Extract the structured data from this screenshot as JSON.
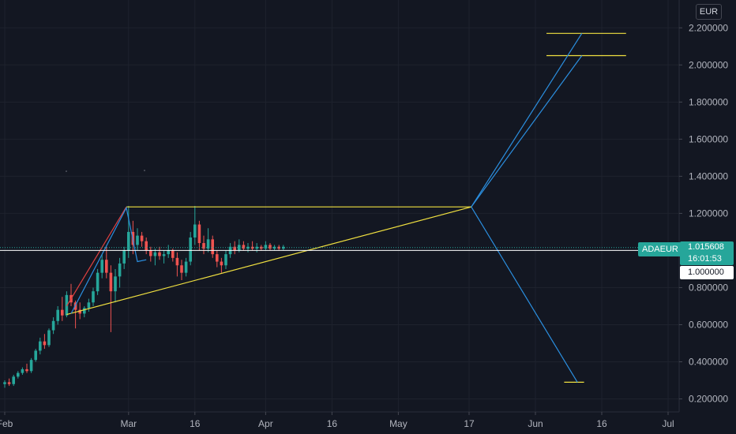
{
  "currency_label": "EUR",
  "symbol_tag": "ADAEUR",
  "last_price": "1.015608",
  "countdown": "16:01:53",
  "level_label": "1.000000",
  "colors": {
    "background": "#131722",
    "up": "#26a69a",
    "down": "#ef5350",
    "yellow": "#f0e040",
    "blue": "#2b8fe0",
    "red": "#e04040"
  },
  "chart_data": {
    "type": "candlestick",
    "symbol": "ADAEUR",
    "currency": "EUR",
    "y_ticks": [
      "2.200000",
      "2.000000",
      "1.800000",
      "1.600000",
      "1.400000",
      "1.200000",
      "0.800000",
      "0.600000",
      "0.400000",
      "0.200000"
    ],
    "y_tick_values": [
      2.2,
      2.0,
      1.8,
      1.6,
      1.4,
      1.2,
      0.8,
      0.6,
      0.4,
      0.2
    ],
    "ylim": [
      0.13,
      2.35
    ],
    "x_ticks": [
      {
        "label": "Feb",
        "day": 0
      },
      {
        "label": "Mar",
        "day": 28
      },
      {
        "label": "16",
        "day": 43
      },
      {
        "label": "Apr",
        "day": 59
      },
      {
        "label": "16",
        "day": 74
      },
      {
        "label": "May",
        "day": 89
      },
      {
        "label": "17",
        "day": 105
      },
      {
        "label": "Jun",
        "day": 120
      },
      {
        "label": "16",
        "day": 135
      },
      {
        "label": "Jul",
        "day": 150
      }
    ],
    "last_price": 1.015608,
    "level": 1.0,
    "candles": [
      [
        0.28,
        0.3,
        0.26,
        0.29
      ],
      [
        0.29,
        0.31,
        0.27,
        0.28
      ],
      [
        0.28,
        0.33,
        0.27,
        0.32
      ],
      [
        0.32,
        0.35,
        0.31,
        0.34
      ],
      [
        0.34,
        0.37,
        0.33,
        0.36
      ],
      [
        0.36,
        0.39,
        0.34,
        0.35
      ],
      [
        0.35,
        0.42,
        0.34,
        0.41
      ],
      [
        0.41,
        0.47,
        0.4,
        0.46
      ],
      [
        0.46,
        0.53,
        0.44,
        0.51
      ],
      [
        0.51,
        0.55,
        0.47,
        0.49
      ],
      [
        0.49,
        0.58,
        0.48,
        0.57
      ],
      [
        0.57,
        0.64,
        0.55,
        0.62
      ],
      [
        0.62,
        0.7,
        0.6,
        0.68
      ],
      [
        0.68,
        0.75,
        0.62,
        0.65
      ],
      [
        0.65,
        0.78,
        0.64,
        0.76
      ],
      [
        0.76,
        0.82,
        0.7,
        0.72
      ],
      [
        0.72,
        0.73,
        0.58,
        0.68
      ],
      [
        0.68,
        0.72,
        0.63,
        0.66
      ],
      [
        0.66,
        0.7,
        0.64,
        0.69
      ],
      [
        0.69,
        0.74,
        0.67,
        0.72
      ],
      [
        0.72,
        0.8,
        0.7,
        0.78
      ],
      [
        0.78,
        0.9,
        0.76,
        0.88
      ],
      [
        0.88,
        0.98,
        0.85,
        0.95
      ],
      [
        0.95,
        1.02,
        0.85,
        0.88
      ],
      [
        0.88,
        0.92,
        0.56,
        0.78
      ],
      [
        0.78,
        0.9,
        0.72,
        0.86
      ],
      [
        0.86,
        0.96,
        0.8,
        0.93
      ],
      [
        0.93,
        1.02,
        0.9,
        1.0
      ],
      [
        1.0,
        1.24,
        0.96,
        1.1
      ],
      [
        1.1,
        1.16,
        0.98,
        1.03
      ],
      [
        1.03,
        1.12,
        1.0,
        1.08
      ],
      [
        1.08,
        1.1,
        1.02,
        1.05
      ],
      [
        1.05,
        1.07,
        0.98,
        1.0
      ],
      [
        1.0,
        1.02,
        0.94,
        0.97
      ],
      [
        0.97,
        1.01,
        0.92,
        0.99
      ],
      [
        0.99,
        1.02,
        0.95,
        0.97
      ],
      [
        0.97,
        1.0,
        0.93,
        0.98
      ],
      [
        0.98,
        1.03,
        0.96,
        1.0
      ],
      [
        1.0,
        1.01,
        0.94,
        0.96
      ],
      [
        0.96,
        0.99,
        0.86,
        0.92
      ],
      [
        0.92,
        0.95,
        0.84,
        0.88
      ],
      [
        0.88,
        0.96,
        0.86,
        0.94
      ],
      [
        0.94,
        1.1,
        0.92,
        1.07
      ],
      [
        1.07,
        1.24,
        1.03,
        1.14
      ],
      [
        1.14,
        1.16,
        1.0,
        1.04
      ],
      [
        1.04,
        1.08,
        0.98,
        1.01
      ],
      [
        1.01,
        1.12,
        0.99,
        1.06
      ],
      [
        1.06,
        1.08,
        0.96,
        0.98
      ],
      [
        0.98,
        1.0,
        0.91,
        0.94
      ],
      [
        0.94,
        0.96,
        0.88,
        0.92
      ],
      [
        0.92,
        1.0,
        0.9,
        0.98
      ],
      [
        0.98,
        1.04,
        0.96,
        1.02
      ],
      [
        1.02,
        1.05,
        0.98,
        1.0
      ],
      [
        1.0,
        1.06,
        0.99,
        1.03
      ],
      [
        1.03,
        1.05,
        1.0,
        1.01
      ],
      [
        1.01,
        1.04,
        0.99,
        1.02
      ],
      [
        1.02,
        1.05,
        1.0,
        1.01
      ],
      [
        1.01,
        1.04,
        0.99,
        1.02
      ],
      [
        1.02,
        1.03,
        1.0,
        1.01
      ],
      [
        1.01,
        1.05,
        1.0,
        1.03
      ],
      [
        1.03,
        1.04,
        1.0,
        1.01
      ],
      [
        1.01,
        1.03,
        1.0,
        1.02
      ],
      [
        1.02,
        1.03,
        1.0,
        1.01
      ],
      [
        1.01,
        1.03,
        1.0,
        1.02
      ]
    ],
    "drawings": [
      {
        "name": "triangle-top-line",
        "color": "yellow",
        "points": [
          [
            27.5,
            1.235
          ],
          [
            105.5,
            1.235
          ]
        ]
      },
      {
        "name": "triangle-bottom-line",
        "color": "yellow",
        "points": [
          [
            14,
            0.655
          ],
          [
            105.5,
            1.235
          ]
        ]
      },
      {
        "name": "upper-target-line",
        "color": "yellow",
        "points": [
          [
            122.5,
            2.17
          ],
          [
            140.5,
            2.17
          ]
        ]
      },
      {
        "name": "mid-target-line",
        "color": "yellow",
        "points": [
          [
            122.5,
            2.05
          ],
          [
            140.5,
            2.05
          ]
        ]
      },
      {
        "name": "lower-target-line",
        "color": "yellow",
        "points": [
          [
            126.5,
            0.29
          ],
          [
            131,
            0.29
          ]
        ]
      },
      {
        "name": "projection-up-line-1",
        "color": "blue",
        "points": [
          [
            105.5,
            1.235
          ],
          [
            130.5,
            2.17
          ]
        ]
      },
      {
        "name": "projection-up-line-2",
        "color": "blue",
        "points": [
          [
            105.5,
            1.235
          ],
          [
            130.5,
            2.05
          ]
        ]
      },
      {
        "name": "projection-down-line",
        "color": "blue",
        "points": [
          [
            105.5,
            1.235
          ],
          [
            129.5,
            0.29
          ]
        ]
      },
      {
        "name": "impulse-red-line",
        "color": "red",
        "points": [
          [
            14,
            0.7
          ],
          [
            27.5,
            1.235
          ]
        ]
      },
      {
        "name": "impulse-blue-line",
        "color": "blue",
        "points": [
          [
            15,
            0.66
          ],
          [
            27.5,
            1.23
          ],
          [
            30,
            0.94
          ],
          [
            32,
            0.95
          ]
        ]
      }
    ]
  }
}
